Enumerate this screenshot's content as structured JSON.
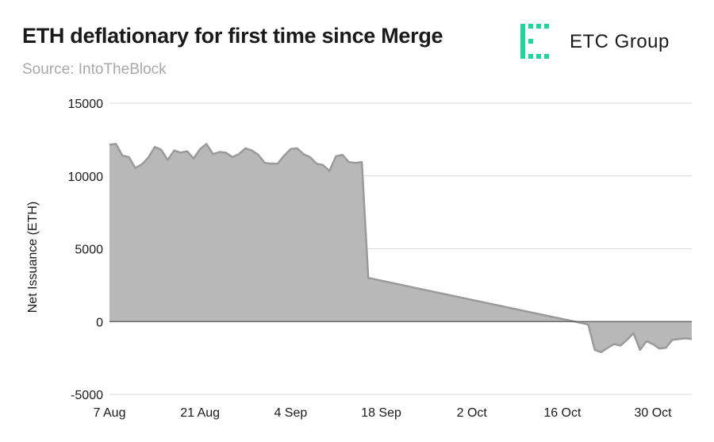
{
  "header": {
    "title": "ETH deflationary for first time since Merge",
    "subtitle": "Source: IntoTheBlock",
    "logo_text": "ETC Group",
    "logo_color": "#1fd69a"
  },
  "chart_data": {
    "type": "area",
    "title": "ETH deflationary for first time since Merge",
    "xlabel": "",
    "ylabel": "Net Issuance (ETH)",
    "ylim": [
      -5000,
      15000
    ],
    "yticks": [
      15000,
      10000,
      5000,
      0,
      -5000
    ],
    "xticks": [
      "7 Aug",
      "21 Aug",
      "4 Sep",
      "18 Sep",
      "2 Oct",
      "16 Oct",
      "30 Oct"
    ],
    "xlim": [
      "2022-08-07",
      "2022-11-05"
    ],
    "grid": true,
    "fill_color": "#b8b8b8",
    "line_color": "#9a9a9a",
    "series": [
      {
        "x": [
          "2022-08-07",
          "2022-08-08",
          "2022-08-09",
          "2022-08-10",
          "2022-08-11",
          "2022-08-12",
          "2022-08-13",
          "2022-08-14",
          "2022-08-15",
          "2022-08-16",
          "2022-08-17",
          "2022-08-18",
          "2022-08-19",
          "2022-08-20",
          "2022-08-21",
          "2022-08-22",
          "2022-08-23",
          "2022-08-24",
          "2022-08-25",
          "2022-08-26",
          "2022-08-27",
          "2022-08-28",
          "2022-08-29",
          "2022-08-30",
          "2022-08-31",
          "2022-09-01",
          "2022-09-02",
          "2022-09-03",
          "2022-09-04",
          "2022-09-05",
          "2022-09-06",
          "2022-09-07",
          "2022-09-08",
          "2022-09-09",
          "2022-09-10",
          "2022-09-11",
          "2022-09-12",
          "2022-09-13",
          "2022-09-14",
          "2022-09-15",
          "2022-09-16",
          "2022-10-20",
          "2022-10-21",
          "2022-10-22",
          "2022-10-23",
          "2022-10-24",
          "2022-10-25",
          "2022-10-26",
          "2022-10-27",
          "2022-10-28",
          "2022-10-29",
          "2022-10-30",
          "2022-10-31",
          "2022-11-01",
          "2022-11-02",
          "2022-11-03",
          "2022-11-04",
          "2022-11-05"
        ],
        "y": [
          12150,
          12200,
          11400,
          11300,
          10550,
          10800,
          11250,
          12000,
          11800,
          11100,
          11750,
          11600,
          11700,
          11200,
          11850,
          12200,
          11500,
          11650,
          11600,
          11300,
          11500,
          11900,
          11750,
          11450,
          10900,
          10850,
          10850,
          11400,
          11850,
          11900,
          11500,
          11300,
          10850,
          10750,
          10350,
          11350,
          11450,
          10950,
          10900,
          10950,
          3000,
          -200,
          -1950,
          -2100,
          -1800,
          -1550,
          -1650,
          -1250,
          -800,
          -1950,
          -1350,
          -1550,
          -1850,
          -1800,
          -1250,
          -1200,
          -1150,
          -1200
        ]
      }
    ]
  }
}
